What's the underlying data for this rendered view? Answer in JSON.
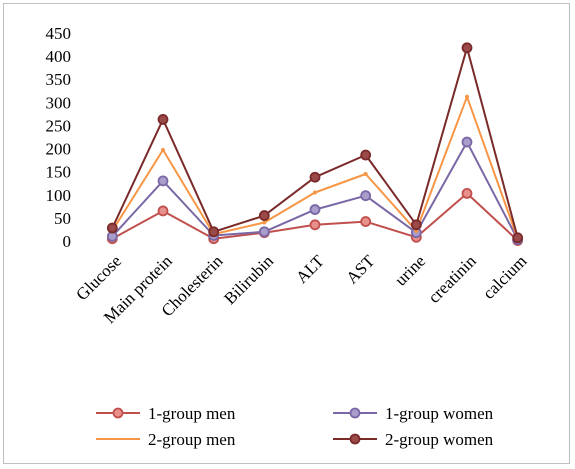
{
  "chart_data": {
    "type": "line",
    "title": "",
    "xlabel": "",
    "ylabel": "",
    "ylim": [
      0,
      450
    ],
    "yticks": [
      0,
      50,
      100,
      150,
      200,
      250,
      300,
      350,
      400,
      450
    ],
    "grid": false,
    "legend_position": "bottom",
    "categories": [
      "Glucose",
      "Main protein",
      "Cholesterin",
      "Bilirubin",
      "ALT",
      "AST",
      "urine",
      "creatinin",
      "calcium"
    ],
    "series": [
      {
        "name": "1-group men",
        "color": "#c0504d",
        "marker_fill": "#e8908c",
        "marker": "circle",
        "values": [
          5,
          65,
          5,
          18,
          35,
          42,
          8,
          103,
          1
        ]
      },
      {
        "name": "1-group women",
        "color": "#7a68a6",
        "marker_fill": "#a99dcc",
        "marker": "circle",
        "values": [
          10,
          130,
          12,
          20,
          68,
          98,
          18,
          214,
          3
        ]
      },
      {
        "name": "2-group men",
        "color": "#f79646",
        "marker_fill": "#f79646",
        "marker": "none",
        "values": [
          22,
          197,
          15,
          40,
          105,
          145,
          22,
          312,
          5
        ]
      },
      {
        "name": "2-group women",
        "color": "#7b2a2a",
        "marker_fill": "#9b4a4a",
        "marker": "circle",
        "values": [
          28,
          263,
          20,
          55,
          138,
          186,
          35,
          418,
          7
        ]
      }
    ]
  }
}
